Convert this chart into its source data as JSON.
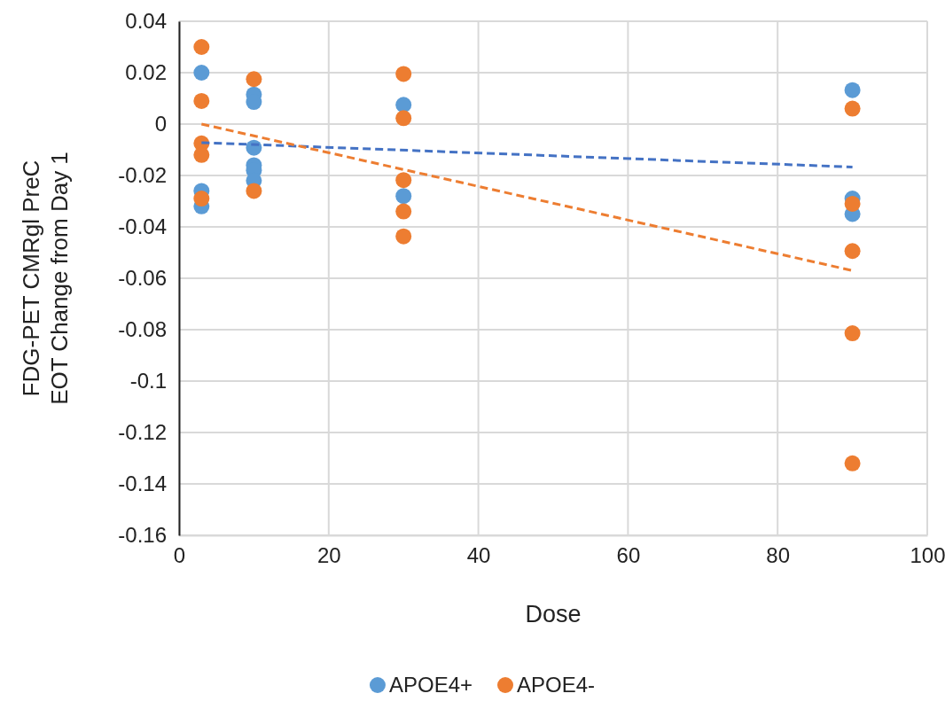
{
  "chart_data": {
    "type": "scatter",
    "xlabel": "Dose",
    "ylabel": "FDG-PET CMRgl PreC\nEOT Change from Day 1",
    "xlim": [
      0,
      100
    ],
    "xticks": [
      0,
      20,
      40,
      60,
      80,
      100
    ],
    "ylim": [
      -0.16,
      0.04
    ],
    "yticks": [
      {
        "value": -0.16,
        "label": "-0.16"
      },
      {
        "value": -0.14,
        "label": "-0.14"
      },
      {
        "value": -0.12,
        "label": "-0.12"
      },
      {
        "value": -0.1,
        "label": "-0.1"
      },
      {
        "value": -0.08,
        "label": "-0.08"
      },
      {
        "value": -0.06,
        "label": "-0.06"
      },
      {
        "value": -0.04,
        "label": "-0.04"
      },
      {
        "value": -0.02,
        "label": "-0.02"
      },
      {
        "value": 0,
        "label": "0"
      },
      {
        "value": 0.02,
        "label": "0.02"
      },
      {
        "value": 0.04,
        "label": "0.04"
      }
    ],
    "grid": true,
    "legend": "bottom",
    "marker": "circle",
    "series": [
      {
        "name": "APOE4+",
        "color": "#5b9bd5",
        "x": [
          3,
          3,
          3,
          10,
          10,
          10,
          10,
          10,
          10,
          30,
          30,
          90,
          90,
          90
        ],
        "values": [
          0.02,
          -0.026,
          -0.032,
          0.0115,
          0.0086,
          -0.0092,
          -0.016,
          -0.018,
          -0.022,
          0.0075,
          -0.028,
          0.0132,
          -0.029,
          -0.035
        ]
      },
      {
        "name": "APOE4-",
        "color": "#ed7d31",
        "x": [
          3,
          3,
          3,
          3,
          3,
          10,
          10,
          30,
          30,
          30,
          30,
          30,
          90,
          90,
          90,
          90,
          90
        ],
        "values": [
          0.03,
          0.009,
          -0.0075,
          -0.012,
          -0.029,
          0.0175,
          -0.026,
          0.0195,
          0.0023,
          -0.0218,
          -0.034,
          -0.0437,
          0.006,
          -0.031,
          -0.0494,
          -0.0814,
          -0.132
        ]
      },
      {
        "type": "line",
        "color": "#4472c4",
        "line_style": "dashed",
        "marker": "none",
        "x": [
          3,
          90
        ],
        "values": [
          -0.0072,
          -0.0167
        ]
      },
      {
        "type": "line",
        "color": "#ed7d31",
        "line_style": "dashed",
        "marker": "none",
        "x": [
          3,
          90
        ],
        "values": [
          0,
          -0.057
        ]
      }
    ]
  }
}
